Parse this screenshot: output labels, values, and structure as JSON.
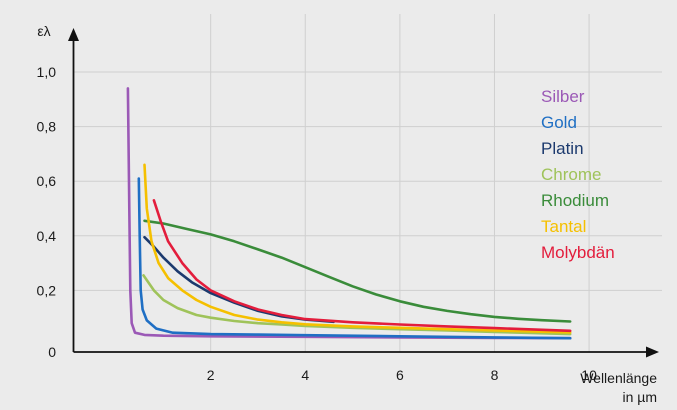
{
  "chart_data": {
    "type": "line",
    "ylabel": "ελ",
    "xlabel_line1": "Wellenlänge",
    "xlabel_line2": "in µm",
    "xlim": [
      -0.9,
      10.4
    ],
    "ylim": [
      0,
      1.0
    ],
    "grid": true,
    "legend_position": "right",
    "x_ticks": [
      {
        "value": 2,
        "label": "2"
      },
      {
        "value": 4,
        "label": "4"
      },
      {
        "value": 6,
        "label": "6"
      },
      {
        "value": 8,
        "label": "8"
      },
      {
        "value": 10,
        "label": "10"
      }
    ],
    "y_ticks": [
      {
        "value": 0,
        "label": "0"
      },
      {
        "value": 0.2,
        "label": "0,2"
      },
      {
        "value": 0.4,
        "label": "0,4"
      },
      {
        "value": 0.6,
        "label": "0,6"
      },
      {
        "value": 0.8,
        "label": "0,8"
      },
      {
        "value": 1.0,
        "label": "1,0"
      }
    ],
    "series": [
      {
        "name": "Silber",
        "color": "#9b59b6",
        "points": [
          [
            0.25,
            0.94
          ],
          [
            0.28,
            0.5
          ],
          [
            0.3,
            0.2
          ],
          [
            0.33,
            0.08
          ],
          [
            0.4,
            0.045
          ],
          [
            0.6,
            0.037
          ],
          [
            1.0,
            0.034
          ],
          [
            2,
            0.032
          ],
          [
            4,
            0.03
          ],
          [
            6,
            0.028
          ],
          [
            8,
            0.026
          ],
          [
            9.6,
            0.025
          ]
        ]
      },
      {
        "name": "Gold",
        "color": "#1f6fc4",
        "points": [
          [
            0.48,
            0.61
          ],
          [
            0.5,
            0.4
          ],
          [
            0.52,
            0.2
          ],
          [
            0.56,
            0.13
          ],
          [
            0.65,
            0.09
          ],
          [
            0.85,
            0.06
          ],
          [
            1.2,
            0.045
          ],
          [
            2,
            0.04
          ],
          [
            3,
            0.038
          ],
          [
            4,
            0.036
          ],
          [
            6,
            0.032
          ],
          [
            8,
            0.028
          ],
          [
            9.6,
            0.025
          ]
        ]
      },
      {
        "name": "Platin",
        "color": "#1c3a6e",
        "points": [
          [
            0.6,
            0.395
          ],
          [
            0.8,
            0.36
          ],
          [
            1.0,
            0.32
          ],
          [
            1.3,
            0.27
          ],
          [
            1.6,
            0.23
          ],
          [
            2,
            0.19
          ],
          [
            2.5,
            0.155
          ],
          [
            3,
            0.125
          ],
          [
            3.5,
            0.105
          ],
          [
            4,
            0.093
          ],
          [
            4.6,
            0.085
          ]
        ]
      },
      {
        "name": "Chrome",
        "color": "#9fc35a",
        "points": [
          [
            0.58,
            0.255
          ],
          [
            0.8,
            0.2
          ],
          [
            1.0,
            0.165
          ],
          [
            1.3,
            0.135
          ],
          [
            1.7,
            0.11
          ],
          [
            2,
            0.1
          ],
          [
            2.5,
            0.088
          ],
          [
            3,
            0.08
          ],
          [
            3.5,
            0.075
          ],
          [
            4,
            0.07
          ],
          [
            5,
            0.063
          ],
          [
            6,
            0.058
          ],
          [
            7,
            0.053
          ],
          [
            8,
            0.048
          ],
          [
            9.6,
            0.04
          ]
        ]
      },
      {
        "name": "Rhodium",
        "color": "#3a8c3a",
        "points": [
          [
            0.6,
            0.455
          ],
          [
            1.0,
            0.445
          ],
          [
            1.5,
            0.425
          ],
          [
            2,
            0.405
          ],
          [
            2.5,
            0.38
          ],
          [
            3,
            0.35
          ],
          [
            3.5,
            0.32
          ],
          [
            4,
            0.285
          ],
          [
            4.5,
            0.25
          ],
          [
            5,
            0.215
          ],
          [
            5.5,
            0.185
          ],
          [
            6,
            0.16
          ],
          [
            6.5,
            0.14
          ],
          [
            7,
            0.125
          ],
          [
            7.5,
            0.113
          ],
          [
            8,
            0.103
          ],
          [
            8.5,
            0.096
          ],
          [
            9,
            0.091
          ],
          [
            9.6,
            0.086
          ]
        ]
      },
      {
        "name": "Tantal",
        "color": "#f5c000",
        "points": [
          [
            0.6,
            0.66
          ],
          [
            0.65,
            0.5
          ],
          [
            0.75,
            0.38
          ],
          [
            0.9,
            0.3
          ],
          [
            1.1,
            0.245
          ],
          [
            1.4,
            0.2
          ],
          [
            1.7,
            0.165
          ],
          [
            2,
            0.14
          ],
          [
            2.5,
            0.11
          ],
          [
            3,
            0.093
          ],
          [
            3.5,
            0.083
          ],
          [
            4,
            0.076
          ],
          [
            5,
            0.068
          ],
          [
            6,
            0.063
          ],
          [
            7,
            0.058
          ],
          [
            8,
            0.053
          ],
          [
            9.6,
            0.046
          ]
        ]
      },
      {
        "name": "Molybdän",
        "color": "#e31d3c",
        "points": [
          [
            0.8,
            0.53
          ],
          [
            0.95,
            0.45
          ],
          [
            1.1,
            0.38
          ],
          [
            1.4,
            0.3
          ],
          [
            1.7,
            0.24
          ],
          [
            2,
            0.2
          ],
          [
            2.5,
            0.16
          ],
          [
            3,
            0.13
          ],
          [
            3.5,
            0.11
          ],
          [
            4,
            0.095
          ],
          [
            5,
            0.083
          ],
          [
            6,
            0.075
          ],
          [
            7,
            0.068
          ],
          [
            8,
            0.062
          ],
          [
            9.6,
            0.052
          ]
        ]
      }
    ]
  }
}
